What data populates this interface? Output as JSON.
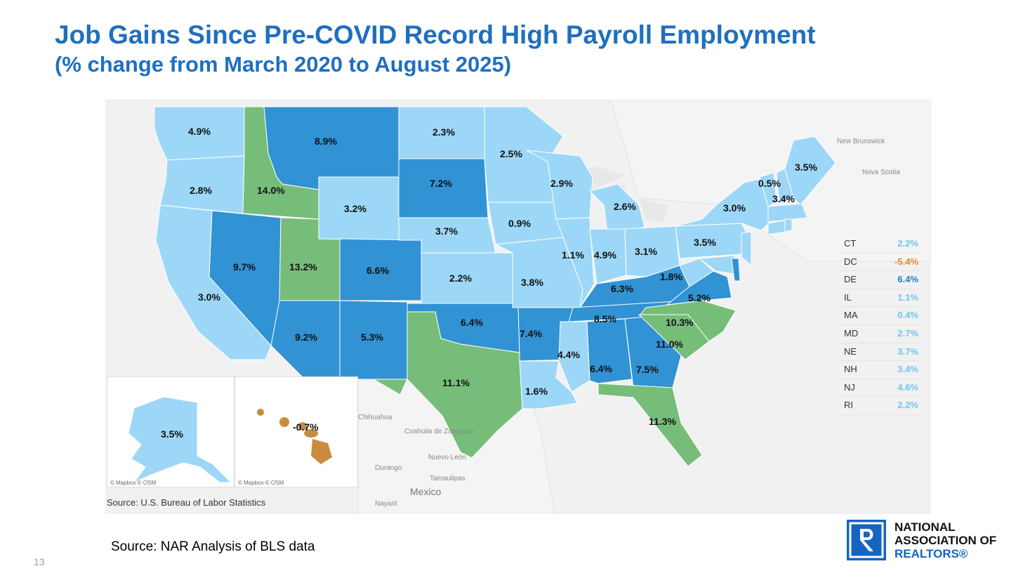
{
  "title": "Job Gains Since Pre-COVID Record High Payroll Employment",
  "subtitle": "(% change from March 2020 to August 2025)",
  "colors": {
    "light": "#9dd7f7",
    "dark": "#3192d4",
    "green": "#77bd7a",
    "orange": "#c98c3e"
  },
  "states": [
    {
      "name": "WA",
      "value": "4.9%",
      "color": "light"
    },
    {
      "name": "OR",
      "value": "2.8%",
      "color": "light"
    },
    {
      "name": "CA",
      "value": "3.0%",
      "color": "light"
    },
    {
      "name": "ID",
      "value": "14.0%",
      "color": "green"
    },
    {
      "name": "NV",
      "value": "9.7%",
      "color": "dark"
    },
    {
      "name": "UT",
      "value": "13.2%",
      "color": "green"
    },
    {
      "name": "AZ",
      "value": "9.2%",
      "color": "dark"
    },
    {
      "name": "MT",
      "value": "8.9%",
      "color": "dark"
    },
    {
      "name": "WY",
      "value": "3.2%",
      "color": "light"
    },
    {
      "name": "CO",
      "value": "6.6%",
      "color": "dark"
    },
    {
      "name": "NM",
      "value": "5.3%",
      "color": "dark"
    },
    {
      "name": "ND",
      "value": "2.3%",
      "color": "light"
    },
    {
      "name": "SD",
      "value": "7.2%",
      "color": "dark"
    },
    {
      "name": "NE",
      "value": "3.7%",
      "color": "light"
    },
    {
      "name": "KS",
      "value": "2.2%",
      "color": "light"
    },
    {
      "name": "OK",
      "value": "6.4%",
      "color": "dark"
    },
    {
      "name": "TX",
      "value": "11.1%",
      "color": "green"
    },
    {
      "name": "MN",
      "value": "2.5%",
      "color": "light"
    },
    {
      "name": "IA",
      "value": "0.9%",
      "color": "light"
    },
    {
      "name": "MO",
      "value": "3.8%",
      "color": "light"
    },
    {
      "name": "AR",
      "value": "7.4%",
      "color": "dark"
    },
    {
      "name": "LA",
      "value": "1.6%",
      "color": "light"
    },
    {
      "name": "WI",
      "value": "2.9%",
      "color": "light"
    },
    {
      "name": "MI",
      "value": "2.6%",
      "color": "light"
    },
    {
      "name": "IL",
      "value": "1.1%",
      "color": "light"
    },
    {
      "name": "IN",
      "value": "4.9%",
      "color": "light"
    },
    {
      "name": "OH",
      "value": "3.1%",
      "color": "light"
    },
    {
      "name": "KY",
      "value": "6.3%",
      "color": "dark"
    },
    {
      "name": "TN",
      "value": "8.5%",
      "color": "dark"
    },
    {
      "name": "MS",
      "value": "4.4%",
      "color": "light"
    },
    {
      "name": "AL",
      "value": "6.4%",
      "color": "dark"
    },
    {
      "name": "GA",
      "value": "7.5%",
      "color": "dark"
    },
    {
      "name": "FL",
      "value": "11.3%",
      "color": "green"
    },
    {
      "name": "SC",
      "value": "11.0%",
      "color": "green"
    },
    {
      "name": "NC",
      "value": "10.3%",
      "color": "green"
    },
    {
      "name": "VA",
      "value": "5.2%",
      "color": "dark"
    },
    {
      "name": "WV",
      "value": "1.8%",
      "color": "light"
    },
    {
      "name": "PA",
      "value": "3.5%",
      "color": "light"
    },
    {
      "name": "NY",
      "value": "3.0%",
      "color": "light"
    },
    {
      "name": "VT",
      "value": "0.5%",
      "color": "light"
    },
    {
      "name": "NH",
      "value": "3.4%",
      "color": "light"
    },
    {
      "name": "ME",
      "value": "3.5%",
      "color": "light"
    },
    {
      "name": "AK",
      "value": "3.5%",
      "color": "light"
    },
    {
      "name": "HI",
      "value": "-0.7%",
      "color": "orange"
    }
  ],
  "map_labels": {
    "canada": [
      "New Brunswick",
      "Nova Scotia"
    ],
    "mexico": [
      "Chihuahua",
      "Coahuila de Zaragoza",
      "Nuevo León",
      "Durango",
      "Tamaulipas",
      "Mexico",
      "Nayarit"
    ],
    "credit_ak": "© Mapbox © OSM",
    "credit_hi": "© Mapbox © OSM"
  },
  "map_source": "Source: U.S. Bureau of Labor Statistics",
  "small_states": [
    {
      "state": "CT",
      "value": "2.2%",
      "color": "#6ec6f0"
    },
    {
      "state": "DC",
      "value": "-5.4%",
      "color": "#e08a2e"
    },
    {
      "state": "DE",
      "value": "6.4%",
      "color": "#1f7fc4"
    },
    {
      "state": "IL",
      "value": "1.1%",
      "color": "#6ec6f0"
    },
    {
      "state": "MA",
      "value": "0.4%",
      "color": "#6ec6f0"
    },
    {
      "state": "MD",
      "value": "2.7%",
      "color": "#6ec6f0"
    },
    {
      "state": "NE",
      "value": "3.7%",
      "color": "#6ec6f0"
    },
    {
      "state": "NH",
      "value": "3.4%",
      "color": "#6ec6f0"
    },
    {
      "state": "NJ",
      "value": "4.6%",
      "color": "#6ec6f0"
    },
    {
      "state": "RI",
      "value": "2.2%",
      "color": "#6ec6f0"
    }
  ],
  "source": "Source: NAR Analysis of BLS data",
  "page_number": "13",
  "logo": {
    "line1": "NATIONAL",
    "line2": "ASSOCIATION OF",
    "line3": "REALTORS®"
  }
}
